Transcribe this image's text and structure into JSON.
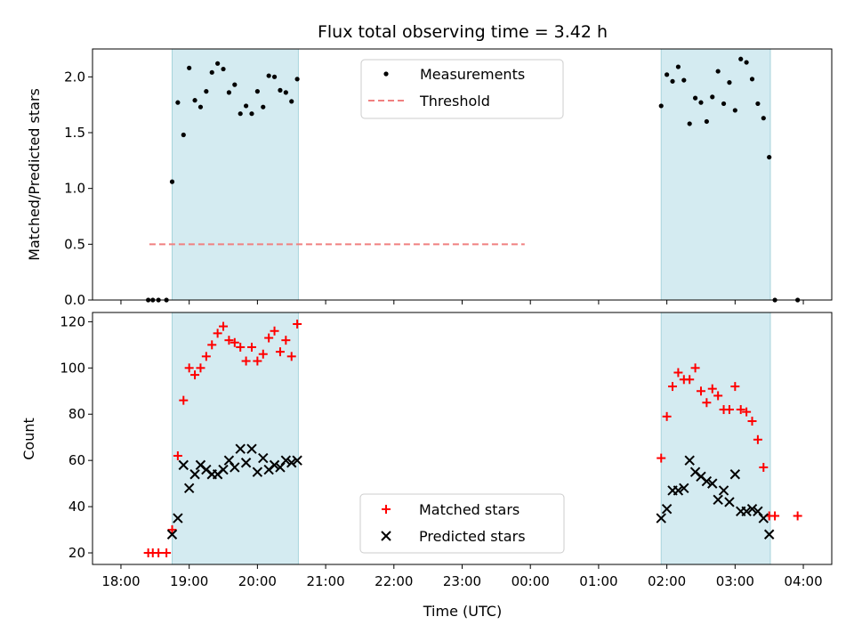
{
  "chart_data": [
    {
      "type": "scatter",
      "title": "Flux total observing time = 3.42 h",
      "ylabel": "Matched/Predicted stars",
      "xlabel": "",
      "xlim": [
        "18:00",
        "04:00"
      ],
      "ylim": [
        0,
        2.25
      ],
      "yticks": [
        0.0,
        0.5,
        1.0,
        1.5,
        2.0
      ],
      "ytick_labels": [
        "0.0",
        "0.5",
        "1.0",
        "1.5",
        "2.0"
      ],
      "legend_position": "top-center",
      "observing_windows": [
        [
          "18:45",
          "20:36"
        ],
        [
          "01:55",
          "03:31"
        ]
      ],
      "window_color": "#d4ebf1",
      "threshold": {
        "name": "Threshold",
        "y": 0.5,
        "x_range": [
          "18:25",
          "23:55"
        ],
        "color": "#f08080",
        "style": "dashed"
      },
      "series": [
        {
          "name": "Measurements",
          "color": "#000000",
          "marker": "dot",
          "points": [
            [
              "18:24",
              0.0
            ],
            [
              "18:28",
              0.0
            ],
            [
              "18:33",
              0.0
            ],
            [
              "18:40",
              0.0
            ],
            [
              "18:45",
              1.06
            ],
            [
              "18:50",
              1.77
            ],
            [
              "18:55",
              1.48
            ],
            [
              "19:00",
              2.08
            ],
            [
              "19:05",
              1.79
            ],
            [
              "19:10",
              1.73
            ],
            [
              "19:15",
              1.87
            ],
            [
              "19:20",
              2.04
            ],
            [
              "19:25",
              2.12
            ],
            [
              "19:30",
              2.07
            ],
            [
              "19:35",
              1.86
            ],
            [
              "19:40",
              1.93
            ],
            [
              "19:45",
              1.67
            ],
            [
              "19:50",
              1.74
            ],
            [
              "19:55",
              1.67
            ],
            [
              "20:00",
              1.87
            ],
            [
              "20:05",
              1.73
            ],
            [
              "20:10",
              2.01
            ],
            [
              "20:15",
              2.0
            ],
            [
              "20:20",
              1.88
            ],
            [
              "20:25",
              1.86
            ],
            [
              "20:30",
              1.78
            ],
            [
              "20:35",
              1.98
            ],
            [
              "01:55",
              1.74
            ],
            [
              "02:00",
              2.02
            ],
            [
              "02:05",
              1.96
            ],
            [
              "02:10",
              2.09
            ],
            [
              "02:15",
              1.97
            ],
            [
              "02:20",
              1.58
            ],
            [
              "02:25",
              1.81
            ],
            [
              "02:30",
              1.77
            ],
            [
              "02:35",
              1.6
            ],
            [
              "02:40",
              1.82
            ],
            [
              "02:45",
              2.05
            ],
            [
              "02:50",
              1.76
            ],
            [
              "02:55",
              1.95
            ],
            [
              "03:00",
              1.7
            ],
            [
              "03:05",
              2.16
            ],
            [
              "03:10",
              2.13
            ],
            [
              "03:15",
              1.98
            ],
            [
              "03:20",
              1.76
            ],
            [
              "03:25",
              1.63
            ],
            [
              "03:30",
              1.28
            ],
            [
              "03:35",
              0.0
            ],
            [
              "03:55",
              0.0
            ]
          ]
        }
      ]
    },
    {
      "type": "scatter",
      "title": "",
      "ylabel": "Count",
      "xlabel": "Time (UTC)",
      "xlim": [
        "18:00",
        "04:00"
      ],
      "ylim": [
        15,
        124
      ],
      "yticks": [
        20,
        40,
        60,
        80,
        100,
        120
      ],
      "xticks": [
        "18:00",
        "19:00",
        "20:00",
        "21:00",
        "22:00",
        "23:00",
        "00:00",
        "01:00",
        "02:00",
        "03:00",
        "04:00"
      ],
      "legend_position": "bottom-center",
      "observing_windows": [
        [
          "18:45",
          "20:36"
        ],
        [
          "01:55",
          "03:31"
        ]
      ],
      "window_color": "#d4ebf1",
      "series": [
        {
          "name": "Matched stars",
          "color": "#ff0000",
          "marker": "plus",
          "points": [
            [
              "18:24",
              20
            ],
            [
              "18:28",
              20
            ],
            [
              "18:33",
              20
            ],
            [
              "18:40",
              20
            ],
            [
              "18:45",
              30
            ],
            [
              "18:50",
              62
            ],
            [
              "18:55",
              86
            ],
            [
              "19:00",
              100
            ],
            [
              "19:05",
              97
            ],
            [
              "19:10",
              100
            ],
            [
              "19:15",
              105
            ],
            [
              "19:20",
              110
            ],
            [
              "19:25",
              115
            ],
            [
              "19:30",
              118
            ],
            [
              "19:35",
              112
            ],
            [
              "19:40",
              111
            ],
            [
              "19:45",
              109
            ],
            [
              "19:50",
              103
            ],
            [
              "19:55",
              109
            ],
            [
              "20:00",
              103
            ],
            [
              "20:05",
              106
            ],
            [
              "20:10",
              113
            ],
            [
              "20:15",
              116
            ],
            [
              "20:20",
              107
            ],
            [
              "20:25",
              112
            ],
            [
              "20:30",
              105
            ],
            [
              "20:35",
              119
            ],
            [
              "01:55",
              61
            ],
            [
              "02:00",
              79
            ],
            [
              "02:05",
              92
            ],
            [
              "02:10",
              98
            ],
            [
              "02:15",
              95
            ],
            [
              "02:20",
              95
            ],
            [
              "02:25",
              100
            ],
            [
              "02:30",
              90
            ],
            [
              "02:35",
              85
            ],
            [
              "02:40",
              91
            ],
            [
              "02:45",
              88
            ],
            [
              "02:50",
              82
            ],
            [
              "02:55",
              82
            ],
            [
              "03:00",
              92
            ],
            [
              "03:05",
              82
            ],
            [
              "03:10",
              81
            ],
            [
              "03:15",
              77
            ],
            [
              "03:20",
              69
            ],
            [
              "03:25",
              57
            ],
            [
              "03:30",
              36
            ],
            [
              "03:35",
              36
            ],
            [
              "03:55",
              36
            ]
          ]
        },
        {
          "name": "Predicted stars",
          "color": "#000000",
          "marker": "cross",
          "points": [
            [
              "18:45",
              28
            ],
            [
              "18:50",
              35
            ],
            [
              "18:55",
              58
            ],
            [
              "19:00",
              48
            ],
            [
              "19:05",
              54
            ],
            [
              "19:10",
              58
            ],
            [
              "19:15",
              56
            ],
            [
              "19:20",
              54
            ],
            [
              "19:25",
              54
            ],
            [
              "19:30",
              56
            ],
            [
              "19:35",
              60
            ],
            [
              "19:40",
              57
            ],
            [
              "19:45",
              65
            ],
            [
              "19:50",
              59
            ],
            [
              "19:55",
              65
            ],
            [
              "20:00",
              55
            ],
            [
              "20:05",
              61
            ],
            [
              "20:10",
              56
            ],
            [
              "20:15",
              58
            ],
            [
              "20:20",
              57
            ],
            [
              "20:25",
              60
            ],
            [
              "20:30",
              59
            ],
            [
              "20:35",
              60
            ],
            [
              "01:55",
              35
            ],
            [
              "02:00",
              39
            ],
            [
              "02:05",
              47
            ],
            [
              "02:10",
              47
            ],
            [
              "02:15",
              48
            ],
            [
              "02:20",
              60
            ],
            [
              "02:25",
              55
            ],
            [
              "02:30",
              53
            ],
            [
              "02:35",
              51
            ],
            [
              "02:40",
              50
            ],
            [
              "02:45",
              43
            ],
            [
              "02:50",
              47
            ],
            [
              "02:55",
              42
            ],
            [
              "03:00",
              54
            ],
            [
              "03:05",
              38
            ],
            [
              "03:10",
              38
            ],
            [
              "03:15",
              39
            ],
            [
              "03:20",
              38
            ],
            [
              "03:25",
              35
            ],
            [
              "03:30",
              28
            ]
          ]
        }
      ]
    }
  ]
}
